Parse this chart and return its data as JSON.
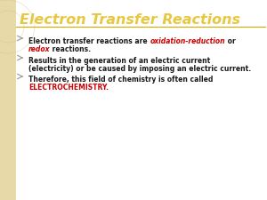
{
  "title": "Electron Transfer Reactions",
  "title_color": "#E8C840",
  "title_fontsize": 11.5,
  "bg_color": "#FFFFFF",
  "left_bar_color": "#E8D9A8",
  "separator_color": "#D4A800",
  "bullet_color": "#888888",
  "text_color": "#1a1a1a",
  "red_color": "#CC0000",
  "b1_part1": "Electron transfer reactions are ",
  "b1_red1": "oxidation-reduction",
  "b1_part2": " or",
  "b1_red2": "redox",
  "b1_part3": " reactions.",
  "b2_line1": "Results in the generation of an electric current",
  "b2_line2": "(electricity) or be caused by imposing an electric current.",
  "b3_line1": "Therefore, this field of chemistry is often called",
  "b3_red": "ELECTROCHEMISTRY.",
  "fontsize": 5.5,
  "title_italic": true
}
